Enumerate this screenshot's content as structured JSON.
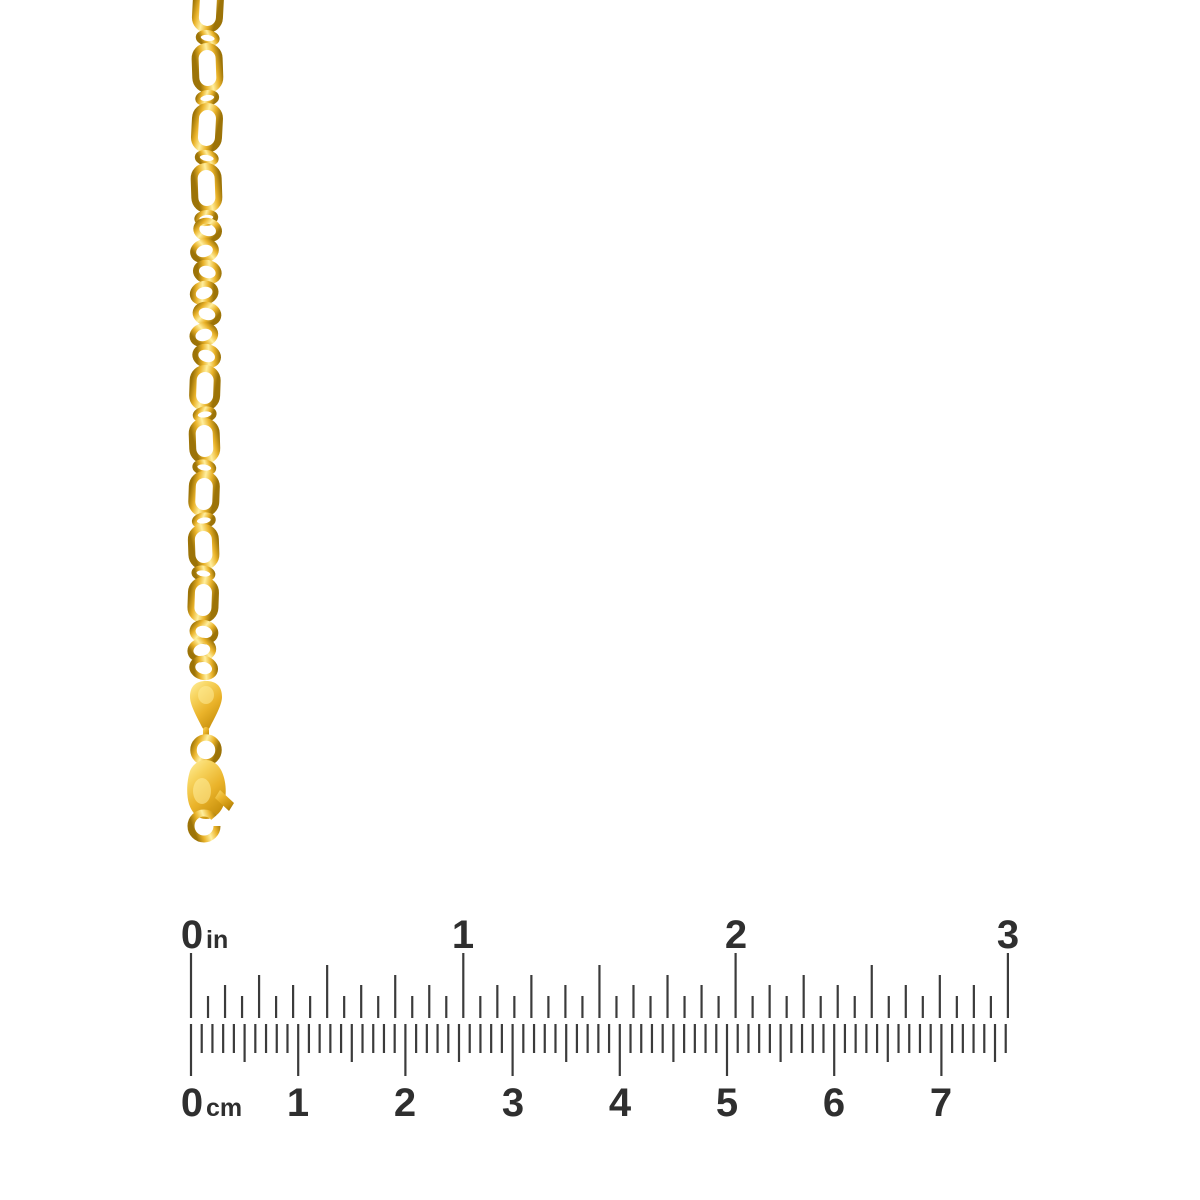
{
  "image": {
    "background": "#ffffff",
    "subject": "Yellow gold figaro-link chain hanging vertically with teardrop tag, jump ring and lobster clasp, above a printed inch and centimeter ruler"
  },
  "chain": {
    "gold": {
      "deep": "#9c7307",
      "dark": "#c9920e",
      "mid": "#eab32a",
      "light": "#f7d45f",
      "highlight": "#ffef9f"
    },
    "parts": [
      "long-oval-links",
      "curb-links",
      "teardrop-tag",
      "jump-ring",
      "lobster-clasp"
    ]
  },
  "ruler": {
    "tick_color": "#3b3b3b",
    "label_color": "#2f2f2f",
    "inch_scale": {
      "unit": "in",
      "whole_labels": [
        "0",
        "1",
        "2",
        "3"
      ],
      "whole_count": 3,
      "subdivisions_per_unit": 16
    },
    "cm_scale": {
      "unit": "cm",
      "whole_labels": [
        "0",
        "1",
        "2",
        "3",
        "4",
        "5",
        "6",
        "7"
      ],
      "total_mm": 76,
      "subdivisions_per_unit": 10
    }
  }
}
